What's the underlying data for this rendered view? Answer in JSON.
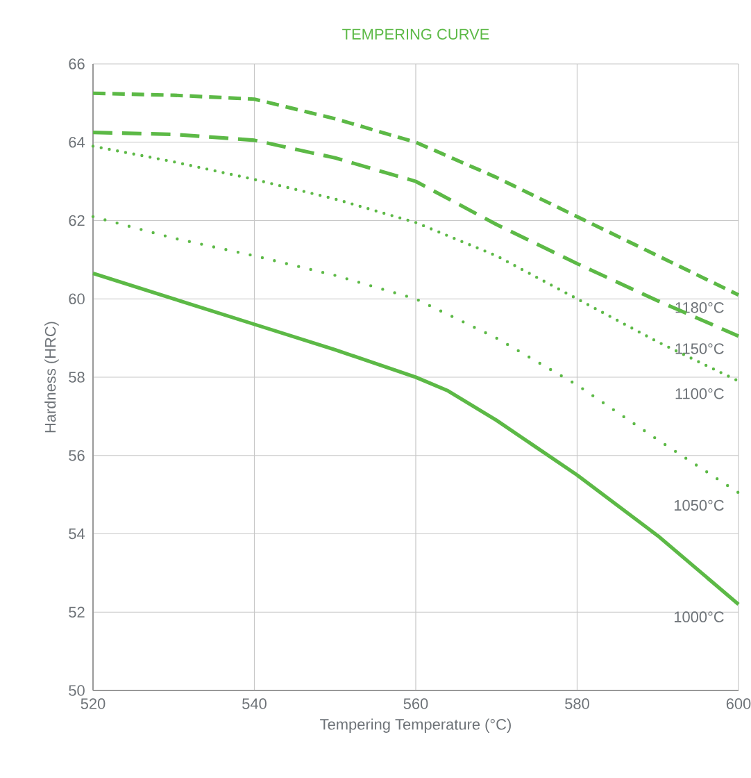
{
  "chart_data": {
    "type": "line",
    "title": "TEMPERING CURVE",
    "xlabel": "Tempering Temperature (°C)",
    "ylabel": "Hardness (HRC)",
    "xlim": [
      520,
      600
    ],
    "xticks": [
      520,
      540,
      560,
      580,
      600
    ],
    "ylim": [
      50,
      66
    ],
    "yticks": [
      50,
      52,
      54,
      56,
      58,
      60,
      62,
      64,
      66
    ],
    "grid": true,
    "series": [
      {
        "name": "1180°C",
        "color": "#5cb946",
        "line_style": "dashed",
        "x": [
          520,
          530,
          540,
          550,
          560,
          570,
          580,
          590,
          600
        ],
        "values": [
          65.25,
          65.2,
          65.1,
          64.6,
          64.0,
          63.1,
          62.1,
          61.1,
          60.1
        ]
      },
      {
        "name": "1150°C",
        "color": "#5cb946",
        "line_style": "dashed",
        "x": [
          520,
          530,
          540,
          550,
          560,
          570,
          580,
          590,
          600
        ],
        "values": [
          64.25,
          64.2,
          64.05,
          63.6,
          63.0,
          61.9,
          60.9,
          59.95,
          59.05
        ]
      },
      {
        "name": "1100°C",
        "color": "#5cb946",
        "line_style": "dotted",
        "x": [
          520,
          530,
          540,
          550,
          560,
          570,
          580,
          590,
          600
        ],
        "values": [
          63.9,
          63.5,
          63.05,
          62.55,
          61.95,
          61.1,
          60.0,
          58.9,
          57.9
        ]
      },
      {
        "name": "1050°C",
        "color": "#5cb946",
        "line_style": "dotted",
        "x": [
          520,
          530,
          540,
          550,
          560,
          570,
          580,
          590,
          600
        ],
        "values": [
          62.1,
          61.55,
          61.1,
          60.6,
          60.0,
          59.0,
          57.8,
          56.4,
          55.05
        ]
      },
      {
        "name": "1000°C",
        "color": "#5cb946",
        "line_style": "solid",
        "x": [
          520,
          530,
          540,
          550,
          560,
          564,
          570,
          580,
          590,
          600
        ],
        "values": [
          60.65,
          60.0,
          59.35,
          58.7,
          58.0,
          57.65,
          56.9,
          55.5,
          53.95,
          52.2
        ]
      }
    ]
  }
}
